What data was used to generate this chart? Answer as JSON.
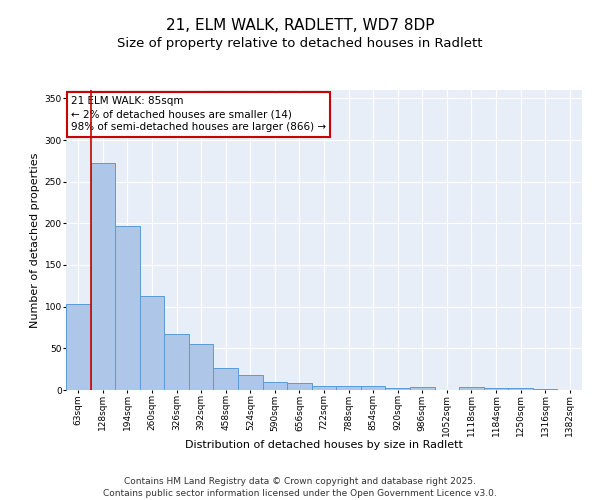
{
  "title1": "21, ELM WALK, RADLETT, WD7 8DP",
  "title2": "Size of property relative to detached houses in Radlett",
  "xlabel": "Distribution of detached houses by size in Radlett",
  "ylabel": "Number of detached properties",
  "categories": [
    "63sqm",
    "128sqm",
    "194sqm",
    "260sqm",
    "326sqm",
    "392sqm",
    "458sqm",
    "524sqm",
    "590sqm",
    "656sqm",
    "722sqm",
    "788sqm",
    "854sqm",
    "920sqm",
    "986sqm",
    "1052sqm",
    "1118sqm",
    "1184sqm",
    "1250sqm",
    "1316sqm",
    "1382sqm"
  ],
  "values": [
    103,
    272,
    197,
    113,
    67,
    55,
    26,
    18,
    10,
    8,
    5,
    5,
    5,
    3,
    4,
    0,
    4,
    3,
    2,
    1,
    0
  ],
  "bar_color": "#aec6e8",
  "bar_edge_color": "#5b9bd5",
  "vline_color": "#cc0000",
  "annotation_text": "21 ELM WALK: 85sqm\n← 2% of detached houses are smaller (14)\n98% of semi-detached houses are larger (866) →",
  "annotation_box_color": "#cc0000",
  "ylim": [
    0,
    360
  ],
  "yticks": [
    0,
    50,
    100,
    150,
    200,
    250,
    300,
    350
  ],
  "background_color": "#e8eef8",
  "footer": "Contains HM Land Registry data © Crown copyright and database right 2025.\nContains public sector information licensed under the Open Government Licence v3.0.",
  "title1_fontsize": 11,
  "title2_fontsize": 9.5,
  "xlabel_fontsize": 8,
  "ylabel_fontsize": 8,
  "tick_fontsize": 6.5,
  "annotation_fontsize": 7.5,
  "footer_fontsize": 6.5
}
